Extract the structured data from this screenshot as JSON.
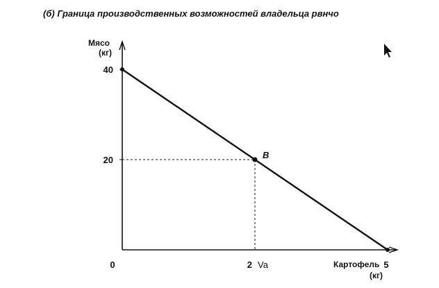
{
  "chart_data": {
    "type": "line",
    "title": "(б) Граница производственных возможностей владельца рвнчо",
    "xlabel_line1": "Картофель",
    "xlabel_line2": "(кг)",
    "ylabel_line1": "Мясо",
    "ylabel_line2": "(кг)",
    "xlim": [
      0,
      7.4
    ],
    "ylim": [
      0,
      42
    ],
    "x_ticks": [
      {
        "value": 0,
        "label": "0"
      },
      {
        "value": 2.5,
        "label": "2",
        "suffix": "Va"
      },
      {
        "value": 5,
        "label": "5"
      }
    ],
    "y_ticks": [
      {
        "value": 20,
        "label": "20"
      },
      {
        "value": 40,
        "label": "40"
      }
    ],
    "series": [
      {
        "points": [
          [
            0,
            40
          ],
          [
            5,
            0
          ]
        ]
      }
    ],
    "points": [
      {
        "label": "B",
        "x": 2.5,
        "y": 20
      }
    ]
  }
}
